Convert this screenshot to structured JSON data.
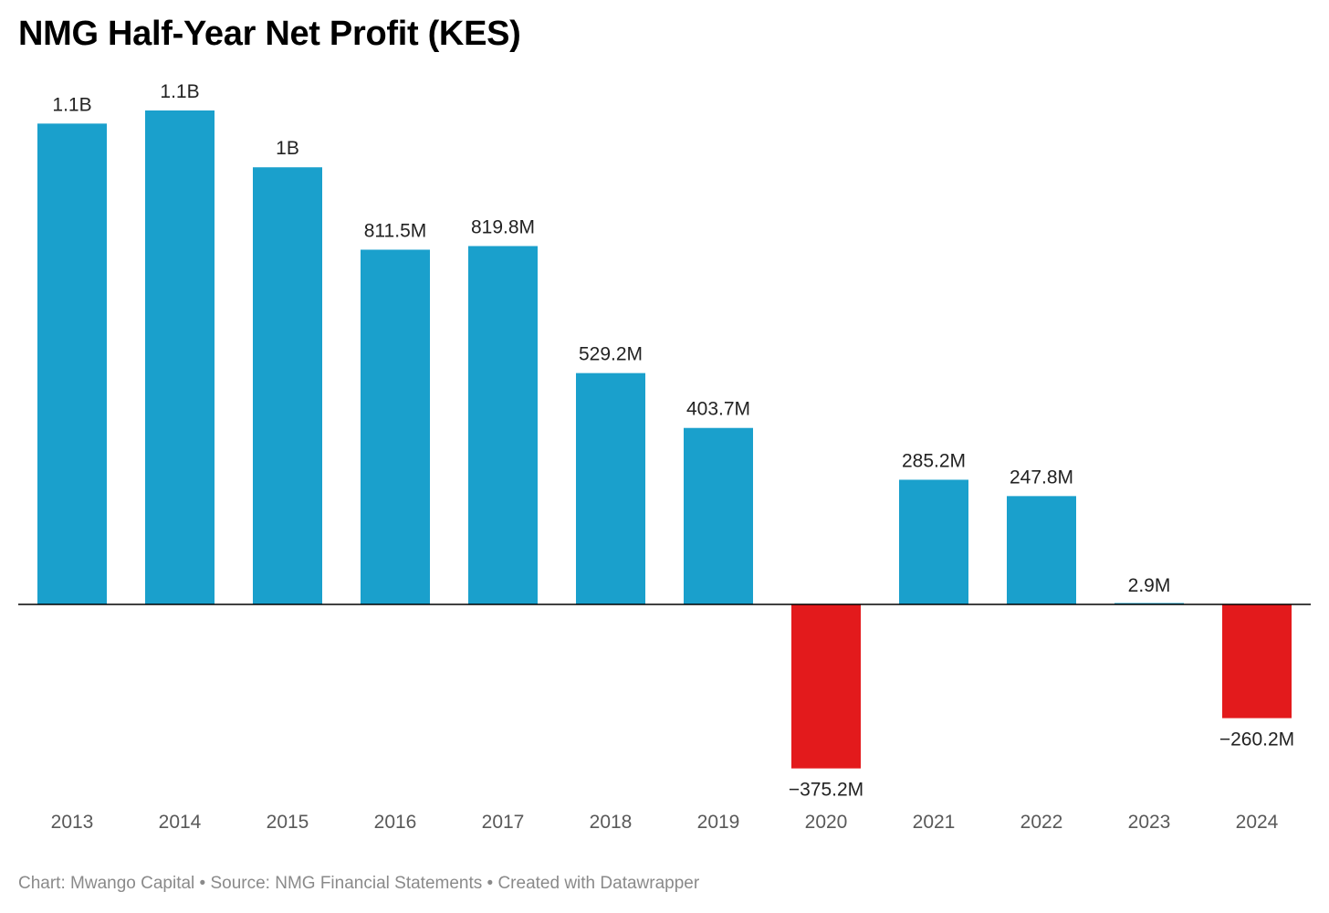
{
  "chart_data": {
    "type": "bar",
    "title": "NMG Half-Year Net Profit (KES)",
    "xlabel": "",
    "ylabel": "",
    "unit": "KES",
    "categories": [
      "2013",
      "2014",
      "2015",
      "2016",
      "2017",
      "2018",
      "2019",
      "2020",
      "2021",
      "2022",
      "2023",
      "2024"
    ],
    "values": [
      1100000000,
      1130000000,
      1000000000,
      811500000,
      819800000,
      529200000,
      403700000,
      -375200000,
      285200000,
      247800000,
      2900000,
      -260200000
    ],
    "data_labels": [
      "1.1B",
      "1.1B",
      "1B",
      "811.5M",
      "819.8M",
      "529.2M",
      "403.7M",
      "−375.2M",
      "285.2M",
      "247.8M",
      "2.9M",
      "−260.2M"
    ],
    "ylim": [
      -375200000,
      1130000000
    ],
    "grid": false,
    "legend": "none",
    "colors": {
      "positive": "#1aa0cc",
      "negative": "#e31a1c",
      "baseline": "#000000"
    }
  },
  "footer": {
    "text": "Chart: Mwango Capital • Source: NMG Financial Statements • Created with Datawrapper"
  }
}
